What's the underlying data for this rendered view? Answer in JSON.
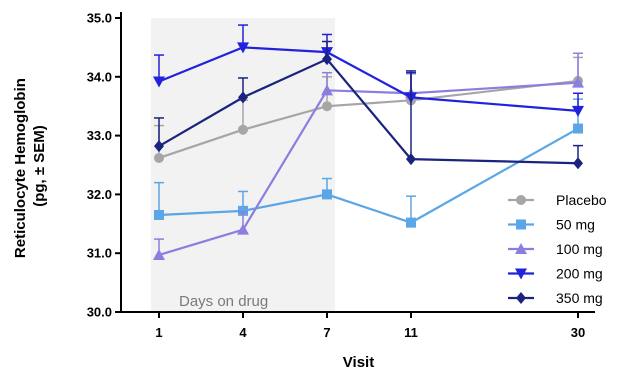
{
  "chart_data": {
    "type": "line",
    "title": "",
    "xlabel": "Visit",
    "ylabel_line1": "Reticulocyte Hemoglobin",
    "ylabel_line2": "(pg, ± SEM)",
    "categories": [
      "1",
      "4",
      "7",
      "11",
      "30"
    ],
    "ylim": [
      30.0,
      35.0
    ],
    "yticks": [
      "30.0",
      "31.0",
      "32.0",
      "33.0",
      "34.0",
      "35.0"
    ],
    "shaded_region": {
      "label": "Days on drug",
      "from": "1",
      "to": "7"
    },
    "legend_position": "bottom-right",
    "series": [
      {
        "name": "Placebo",
        "color": "#a6a6a6",
        "marker": "circle",
        "values": [
          32.62,
          33.1,
          33.5,
          33.6,
          33.93
        ],
        "errors": [
          0.55,
          0.5,
          0.5,
          0.45,
          0.4
        ]
      },
      {
        "name": "50 mg",
        "color": "#5aa6e6",
        "marker": "square",
        "values": [
          31.65,
          31.72,
          32.0,
          31.52,
          33.12
        ],
        "errors": [
          0.55,
          0.33,
          0.27,
          0.45,
          0.5
        ]
      },
      {
        "name": "100 mg",
        "color": "#8a7ee0",
        "marker": "triangle-up",
        "values": [
          30.97,
          31.4,
          33.77,
          33.72,
          33.9
        ],
        "errors": [
          0.27,
          0.3,
          0.3,
          0.35,
          0.5
        ]
      },
      {
        "name": "200 mg",
        "color": "#2222dd",
        "marker": "triangle-down",
        "values": [
          33.92,
          34.5,
          34.42,
          33.65,
          33.42
        ],
        "errors": [
          0.45,
          0.38,
          0.3,
          0.42,
          0.3
        ]
      },
      {
        "name": "350 mg",
        "color": "#1a237e",
        "marker": "diamond",
        "values": [
          32.82,
          33.65,
          34.3,
          32.6,
          32.53
        ],
        "errors": [
          0.48,
          0.33,
          0.3,
          1.5,
          0.3
        ]
      }
    ]
  }
}
